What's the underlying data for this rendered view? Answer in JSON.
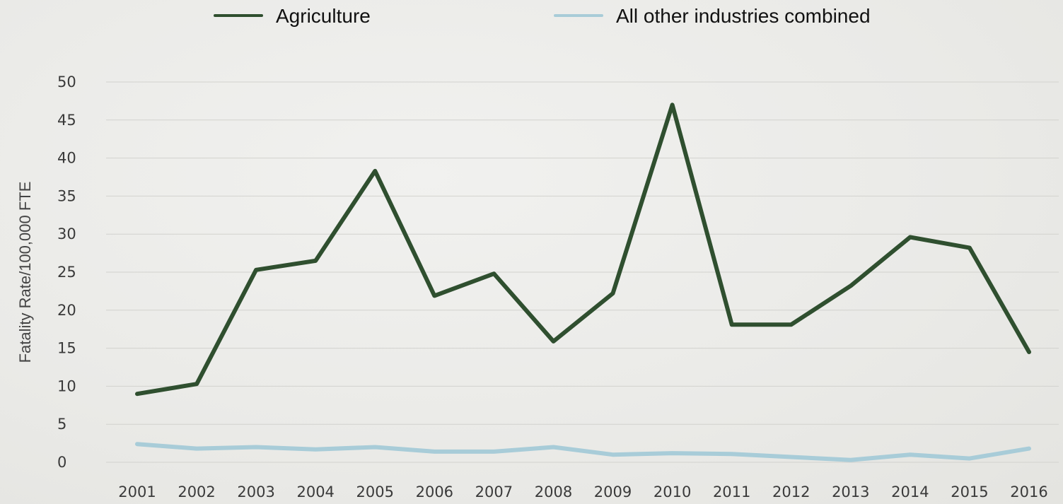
{
  "chart_data": {
    "type": "line",
    "title": "",
    "xlabel": "",
    "ylabel": "Fatality Rate/100,000 FTE",
    "x": [
      "2001",
      "2002",
      "2003",
      "2004",
      "2005",
      "2006",
      "2007",
      "2008",
      "2009",
      "2010",
      "2011",
      "2012",
      "2013",
      "2014",
      "2015",
      "2016"
    ],
    "ylim": [
      0,
      50
    ],
    "yticks": [
      0,
      5,
      10,
      15,
      20,
      25,
      30,
      35,
      40,
      45,
      50
    ],
    "grid": true,
    "legend_position": "top",
    "series": [
      {
        "name": "Agriculture",
        "color": "#2f4f2f",
        "values": [
          9.0,
          10.3,
          25.3,
          26.5,
          38.3,
          21.9,
          24.8,
          15.9,
          22.2,
          47.0,
          18.1,
          18.1,
          23.2,
          29.6,
          28.2,
          14.5
        ]
      },
      {
        "name": "All other industries combined",
        "color": "#a8ccd8",
        "values": [
          2.4,
          1.8,
          2.0,
          1.7,
          2.0,
          1.4,
          1.4,
          2.0,
          1.0,
          1.2,
          1.1,
          0.7,
          0.3,
          1.0,
          0.5,
          1.8
        ]
      }
    ]
  }
}
